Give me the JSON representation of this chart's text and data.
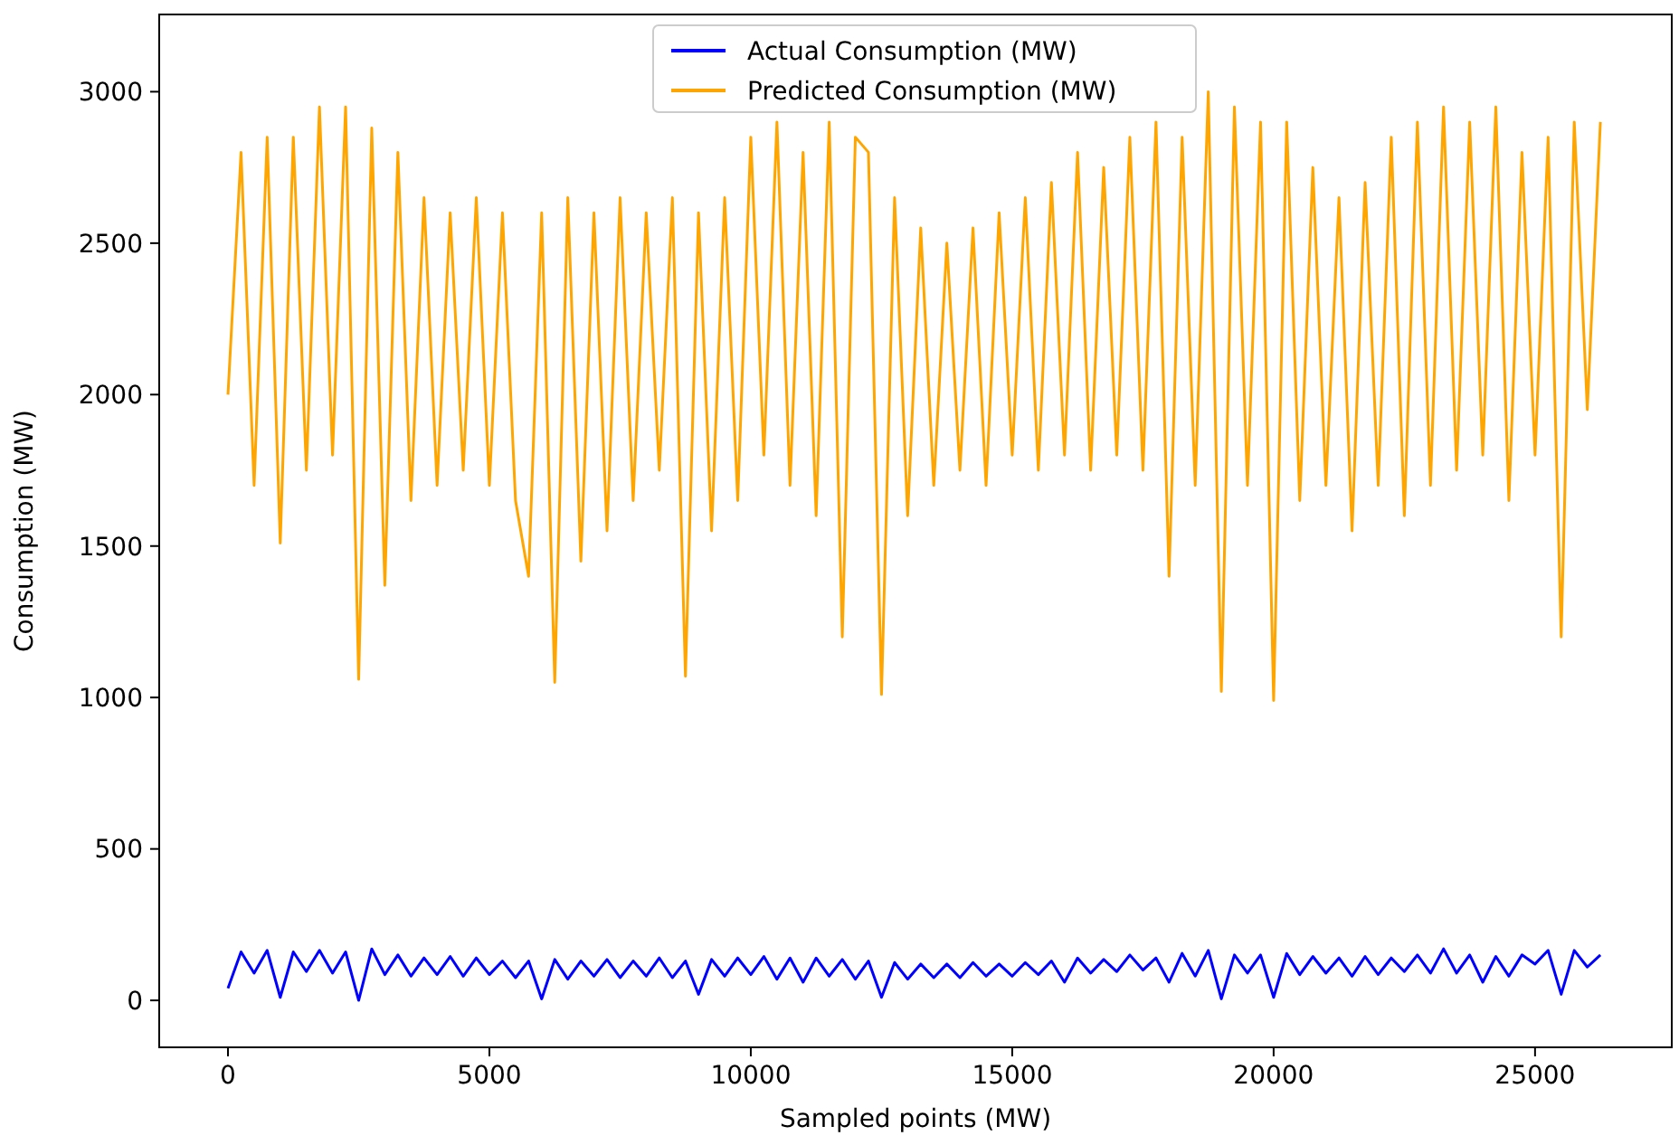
{
  "chart_data": {
    "type": "line",
    "xlabel": "Sampled points (MW)",
    "ylabel": "Consumption (MW)",
    "x": [
      0,
      250,
      500,
      750,
      1000,
      1250,
      1500,
      1750,
      2000,
      2250,
      2500,
      2750,
      3000,
      3250,
      3500,
      3750,
      4000,
      4250,
      4500,
      4750,
      5000,
      5250,
      5500,
      5750,
      6000,
      6250,
      6500,
      6750,
      7000,
      7250,
      7500,
      7750,
      8000,
      8250,
      8500,
      8750,
      9000,
      9250,
      9500,
      9750,
      10000,
      10250,
      10500,
      10750,
      11000,
      11250,
      11500,
      11750,
      12000,
      12250,
      12500,
      12750,
      13000,
      13250,
      13500,
      13750,
      14000,
      14250,
      14500,
      14750,
      15000,
      15250,
      15500,
      15750,
      16000,
      16250,
      16500,
      16750,
      17000,
      17250,
      17500,
      17750,
      18000,
      18250,
      18500,
      18750,
      19000,
      19250,
      19500,
      19750,
      20000,
      20250,
      20500,
      20750,
      21000,
      21250,
      21500,
      21750,
      22000,
      22250,
      22500,
      22750,
      23000,
      23250,
      23500,
      23750,
      24000,
      24250,
      24500,
      24750,
      25000,
      25250,
      25500,
      25750,
      26000,
      26250
    ],
    "series": [
      {
        "name": "Actual Consumption (MW)",
        "color": "#0000ff",
        "values": [
          40,
          160,
          90,
          165,
          10,
          160,
          95,
          165,
          90,
          160,
          0,
          170,
          85,
          150,
          80,
          140,
          85,
          145,
          80,
          140,
          85,
          130,
          75,
          130,
          5,
          135,
          70,
          130,
          80,
          135,
          75,
          130,
          80,
          140,
          75,
          130,
          20,
          135,
          80,
          140,
          85,
          145,
          70,
          140,
          60,
          140,
          80,
          135,
          70,
          130,
          10,
          125,
          70,
          120,
          75,
          120,
          75,
          125,
          80,
          120,
          80,
          125,
          85,
          130,
          60,
          140,
          90,
          135,
          95,
          150,
          100,
          140,
          60,
          155,
          80,
          165,
          5,
          150,
          90,
          150,
          10,
          155,
          85,
          145,
          90,
          140,
          80,
          145,
          85,
          140,
          95,
          150,
          90,
          170,
          90,
          150,
          60,
          145,
          80,
          150,
          120,
          165,
          20,
          165,
          110,
          150
        ]
      },
      {
        "name": "Predicted Consumption (MW)",
        "color": "#ffa500",
        "values": [
          2000,
          2800,
          1700,
          2850,
          1510,
          2850,
          1750,
          2950,
          1800,
          2950,
          1060,
          2880,
          1370,
          2800,
          1650,
          2650,
          1700,
          2600,
          1750,
          2650,
          1700,
          2600,
          1650,
          1400,
          2600,
          1050,
          2650,
          1450,
          2600,
          1550,
          2650,
          1650,
          2600,
          1750,
          2650,
          1070,
          2600,
          1550,
          2650,
          1650,
          2850,
          1800,
          2900,
          1700,
          2800,
          1600,
          2900,
          1200,
          2850,
          2800,
          1010,
          2650,
          1600,
          2550,
          1700,
          2500,
          1750,
          2550,
          1700,
          2600,
          1800,
          2650,
          1750,
          2700,
          1800,
          2800,
          1750,
          2750,
          1800,
          2850,
          1750,
          2900,
          1400,
          2850,
          1700,
          3000,
          1020,
          2950,
          1700,
          2900,
          990,
          2900,
          1650,
          2750,
          1700,
          2650,
          1550,
          2700,
          1700,
          2850,
          1600,
          2900,
          1700,
          2950,
          1750,
          2900,
          1800,
          2950,
          1650,
          2800,
          1800,
          2850,
          1200,
          2900,
          1950,
          2900
        ]
      }
    ],
    "xlim": [
      -1315,
      27615
    ],
    "ylim": [
      -155,
      3255
    ],
    "xticks": [
      0,
      5000,
      10000,
      15000,
      20000,
      25000
    ],
    "yticks": [
      0,
      500,
      1000,
      1500,
      2000,
      2500,
      3000
    ],
    "legend": "top",
    "grid": false,
    "marker": "none",
    "line_style": "solid"
  }
}
